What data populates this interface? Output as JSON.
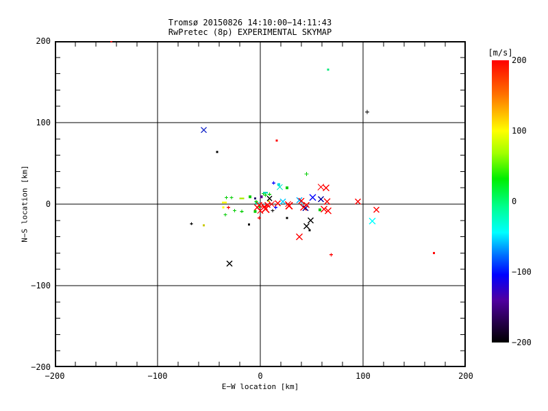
{
  "chart_data": {
    "type": "scatter",
    "title": "Tromsø 20150826 14:10:00−14:11:43",
    "subtitle": "RwPretec (8p) EXPERIMENTAL SKYMAP",
    "xlabel": "E−W location [km]",
    "ylabel": "N−S location [km]",
    "xlim": [
      -200,
      200
    ],
    "ylim": [
      -200,
      200
    ],
    "grid": true,
    "grid_values": [
      -100,
      0,
      100
    ],
    "minor_tick_step_km": 20,
    "xtick_values": [
      -200,
      -100,
      0,
      100,
      200
    ],
    "xtick_labels": [
      "−200",
      "−100",
      "0",
      "100",
      "200"
    ],
    "ytick_values": [
      200,
      100,
      0,
      -100,
      -200
    ],
    "ytick_labels": [
      "200",
      "100",
      "0",
      "−100",
      "−200"
    ],
    "colorbar": {
      "label": "[m/s]",
      "min": -200,
      "max": 200,
      "tick_values": [
        200,
        100,
        0,
        -100,
        -200
      ],
      "tick_labels": [
        "200",
        "100",
        "0",
        "−100",
        "−200"
      ],
      "gradient_stops_top_to_bottom": [
        [
          "#ff0000",
          0
        ],
        [
          "#ff7000",
          12
        ],
        [
          "#ffff00",
          25
        ],
        [
          "#a0ff00",
          33
        ],
        [
          "#00ee00",
          42
        ],
        [
          "#00ff90",
          52
        ],
        [
          "#00ffff",
          61
        ],
        [
          "#0070ff",
          69
        ],
        [
          "#0000ff",
          76
        ],
        [
          "#5000a0",
          85
        ],
        [
          "#250048",
          93
        ],
        [
          "#000000",
          100
        ]
      ]
    },
    "symbol_key": {
      "x": "cross",
      "p": "plus",
      "d": "dot",
      "h": "dash"
    },
    "points": [
      {
        "x": -145,
        "y": 200,
        "c": "#ff0000",
        "s": "d",
        "r": 3
      },
      {
        "x": 66,
        "y": 165,
        "c": "#00e87a",
        "s": "d",
        "r": 3
      },
      {
        "x": 104,
        "y": 113,
        "c": "#000000",
        "s": "p",
        "r": 6
      },
      {
        "x": -55,
        "y": 91,
        "c": "#2233cc",
        "s": "x",
        "r": 8
      },
      {
        "x": 16,
        "y": 78,
        "c": "#ff0000",
        "s": "d",
        "r": 3
      },
      {
        "x": -42,
        "y": 64,
        "c": "#000000",
        "s": "d",
        "r": 3
      },
      {
        "x": -30,
        "y": -73,
        "c": "#000000",
        "s": "x",
        "r": 8
      },
      {
        "x": 169,
        "y": -60,
        "c": "#ff0000",
        "s": "d",
        "r": 3
      },
      {
        "x": 69,
        "y": -62,
        "c": "#ff0000",
        "s": "p",
        "r": 5
      },
      {
        "x": 113,
        "y": -7,
        "c": "#ff0000",
        "s": "x",
        "r": 8
      },
      {
        "x": 109,
        "y": -21,
        "c": "#00ffff",
        "s": "x",
        "r": 9
      },
      {
        "x": 95,
        "y": 3,
        "c": "#ff0000",
        "s": "x",
        "r": 8
      },
      {
        "x": -67,
        "y": -24,
        "c": "#000000",
        "s": "p",
        "r": 4
      },
      {
        "x": -55,
        "y": -26,
        "c": "#c8c800",
        "s": "d",
        "r": 3
      },
      {
        "x": -33,
        "y": 8,
        "c": "#00cc00",
        "s": "p",
        "r": 5
      },
      {
        "x": -28,
        "y": 8,
        "c": "#00cc00",
        "s": "p",
        "r": 5
      },
      {
        "x": -18,
        "y": 7,
        "c": "#aaee00",
        "s": "h",
        "r": 5
      },
      {
        "x": -10,
        "y": 9,
        "c": "#00cc00",
        "s": "d",
        "r": 4
      },
      {
        "x": -35,
        "y": 2,
        "c": "#ffff00",
        "s": "h",
        "r": 5
      },
      {
        "x": -36,
        "y": -4,
        "c": "#ffff00",
        "s": "d",
        "r": 3
      },
      {
        "x": -31,
        "y": -4,
        "c": "#ff0000",
        "s": "p",
        "r": 5
      },
      {
        "x": -34,
        "y": -13,
        "c": "#00cc00",
        "s": "p",
        "r": 5
      },
      {
        "x": -25,
        "y": -8,
        "c": "#00cc00",
        "s": "p",
        "r": 5
      },
      {
        "x": -18,
        "y": -9,
        "c": "#00cc00",
        "s": "p",
        "r": 5
      },
      {
        "x": -11,
        "y": -25,
        "c": "#000000",
        "s": "d",
        "r": 3
      },
      {
        "x": -5,
        "y": -9,
        "c": "#00cc00",
        "s": "d",
        "r": 4
      },
      {
        "x": -3,
        "y": 1,
        "c": "#00dcb4",
        "s": "h",
        "r": 5
      },
      {
        "x": -1,
        "y": -3,
        "c": "#00cc00",
        "s": "p",
        "r": 5
      },
      {
        "x": 1,
        "y": 9,
        "c": "#550088",
        "s": "d",
        "r": 4
      },
      {
        "x": 3,
        "y": 13,
        "c": "#00cc00",
        "s": "p",
        "r": 5
      },
      {
        "x": 5,
        "y": 11,
        "c": "#00cc00",
        "s": "p",
        "r": 5
      },
      {
        "x": 9,
        "y": 12,
        "c": "#00cc00",
        "s": "p",
        "r": 5
      },
      {
        "x": 5,
        "y": 14,
        "c": "#00dcb4",
        "s": "h",
        "r": 5
      },
      {
        "x": 8,
        "y": 4,
        "c": "#d8d800",
        "s": "d",
        "r": 3
      },
      {
        "x": 9,
        "y": 7,
        "c": "#000000",
        "s": "x",
        "r": 7
      },
      {
        "x": 13,
        "y": 26,
        "c": "#0000ff",
        "s": "p",
        "r": 5
      },
      {
        "x": 18,
        "y": 24,
        "c": "#00e0e0",
        "s": "d",
        "r": 4
      },
      {
        "x": 19,
        "y": 21,
        "c": "#00e6c8",
        "s": "x",
        "r": 8
      },
      {
        "x": 26,
        "y": 20,
        "c": "#00cc00",
        "s": "d",
        "r": 4
      },
      {
        "x": 45,
        "y": 37,
        "c": "#00cc00",
        "s": "p",
        "r": 6
      },
      {
        "x": 59,
        "y": 21,
        "c": "#ff0000",
        "s": "x",
        "r": 9
      },
      {
        "x": 64,
        "y": 20,
        "c": "#ff0000",
        "s": "x",
        "r": 9
      },
      {
        "x": -4,
        "y": 3,
        "c": "#00cc00",
        "s": "p",
        "r": 5
      },
      {
        "x": -1,
        "y": -1,
        "c": "#ff0000",
        "s": "x",
        "r": 8
      },
      {
        "x": 4,
        "y": -3,
        "c": "#ff0000",
        "s": "x",
        "r": 9
      },
      {
        "x": 7,
        "y": -1,
        "c": "#ff0000",
        "s": "x",
        "r": 8
      },
      {
        "x": 11,
        "y": 0,
        "c": "#ff0000",
        "s": "x",
        "r": 8
      },
      {
        "x": 17,
        "y": 1,
        "c": "#ff0000",
        "s": "x",
        "r": 8
      },
      {
        "x": -3,
        "y": -4,
        "c": "#ff0000",
        "s": "x",
        "r": 8
      },
      {
        "x": 0,
        "y": -8,
        "c": "#ff0000",
        "s": "x",
        "r": 8
      },
      {
        "x": 5,
        "y": -6,
        "c": "#ff0000",
        "s": "x",
        "r": 11
      },
      {
        "x": 12,
        "y": -8,
        "c": "#000000",
        "s": "p",
        "r": 5
      },
      {
        "x": 15,
        "y": -4,
        "c": "#0000ff",
        "s": "p",
        "r": 5
      },
      {
        "x": -1,
        "y": -17,
        "c": "#ff0000",
        "s": "p",
        "r": 5
      },
      {
        "x": -5,
        "y": 7,
        "c": "#221166",
        "s": "d",
        "r": 3
      },
      {
        "x": 22,
        "y": 3,
        "c": "#00c8ff",
        "s": "x",
        "r": 8
      },
      {
        "x": 27,
        "y": 0,
        "c": "#ff0000",
        "s": "x",
        "r": 8
      },
      {
        "x": 28,
        "y": -2,
        "c": "#ff0000",
        "s": "x",
        "r": 10
      },
      {
        "x": 38,
        "y": 5,
        "c": "#00aaff",
        "s": "x",
        "r": 8
      },
      {
        "x": 51,
        "y": 8,
        "c": "#0000ff",
        "s": "x",
        "r": 9
      },
      {
        "x": 59,
        "y": 6,
        "c": "#000099",
        "s": "x",
        "r": 8
      },
      {
        "x": 65,
        "y": 3,
        "c": "#ff0000",
        "s": "x",
        "r": 9
      },
      {
        "x": 40,
        "y": 4,
        "c": "#ff0000",
        "s": "x",
        "r": 8
      },
      {
        "x": 42,
        "y": -4,
        "c": "#ff0000",
        "s": "x",
        "r": 9
      },
      {
        "x": 44,
        "y": -5,
        "c": "#000099",
        "s": "x",
        "r": 8
      },
      {
        "x": 45,
        "y": -1,
        "c": "#ff0000",
        "s": "x",
        "r": 8
      },
      {
        "x": 58,
        "y": -7,
        "c": "#00cc00",
        "s": "d",
        "r": 4
      },
      {
        "x": 62,
        "y": -6,
        "c": "#ff0000",
        "s": "x",
        "r": 9
      },
      {
        "x": 66,
        "y": -8,
        "c": "#ff0000",
        "s": "x",
        "r": 9
      },
      {
        "x": 26,
        "y": -17,
        "c": "#000000",
        "s": "d",
        "r": 3
      },
      {
        "x": 49,
        "y": -20,
        "c": "#000000",
        "s": "x",
        "r": 8
      },
      {
        "x": 45,
        "y": -27,
        "c": "#000000",
        "s": "x",
        "r": 8
      },
      {
        "x": 48,
        "y": -32,
        "c": "#000000",
        "s": "d",
        "r": 3
      },
      {
        "x": 38,
        "y": -40,
        "c": "#ff0000",
        "s": "x",
        "r": 9
      }
    ]
  }
}
